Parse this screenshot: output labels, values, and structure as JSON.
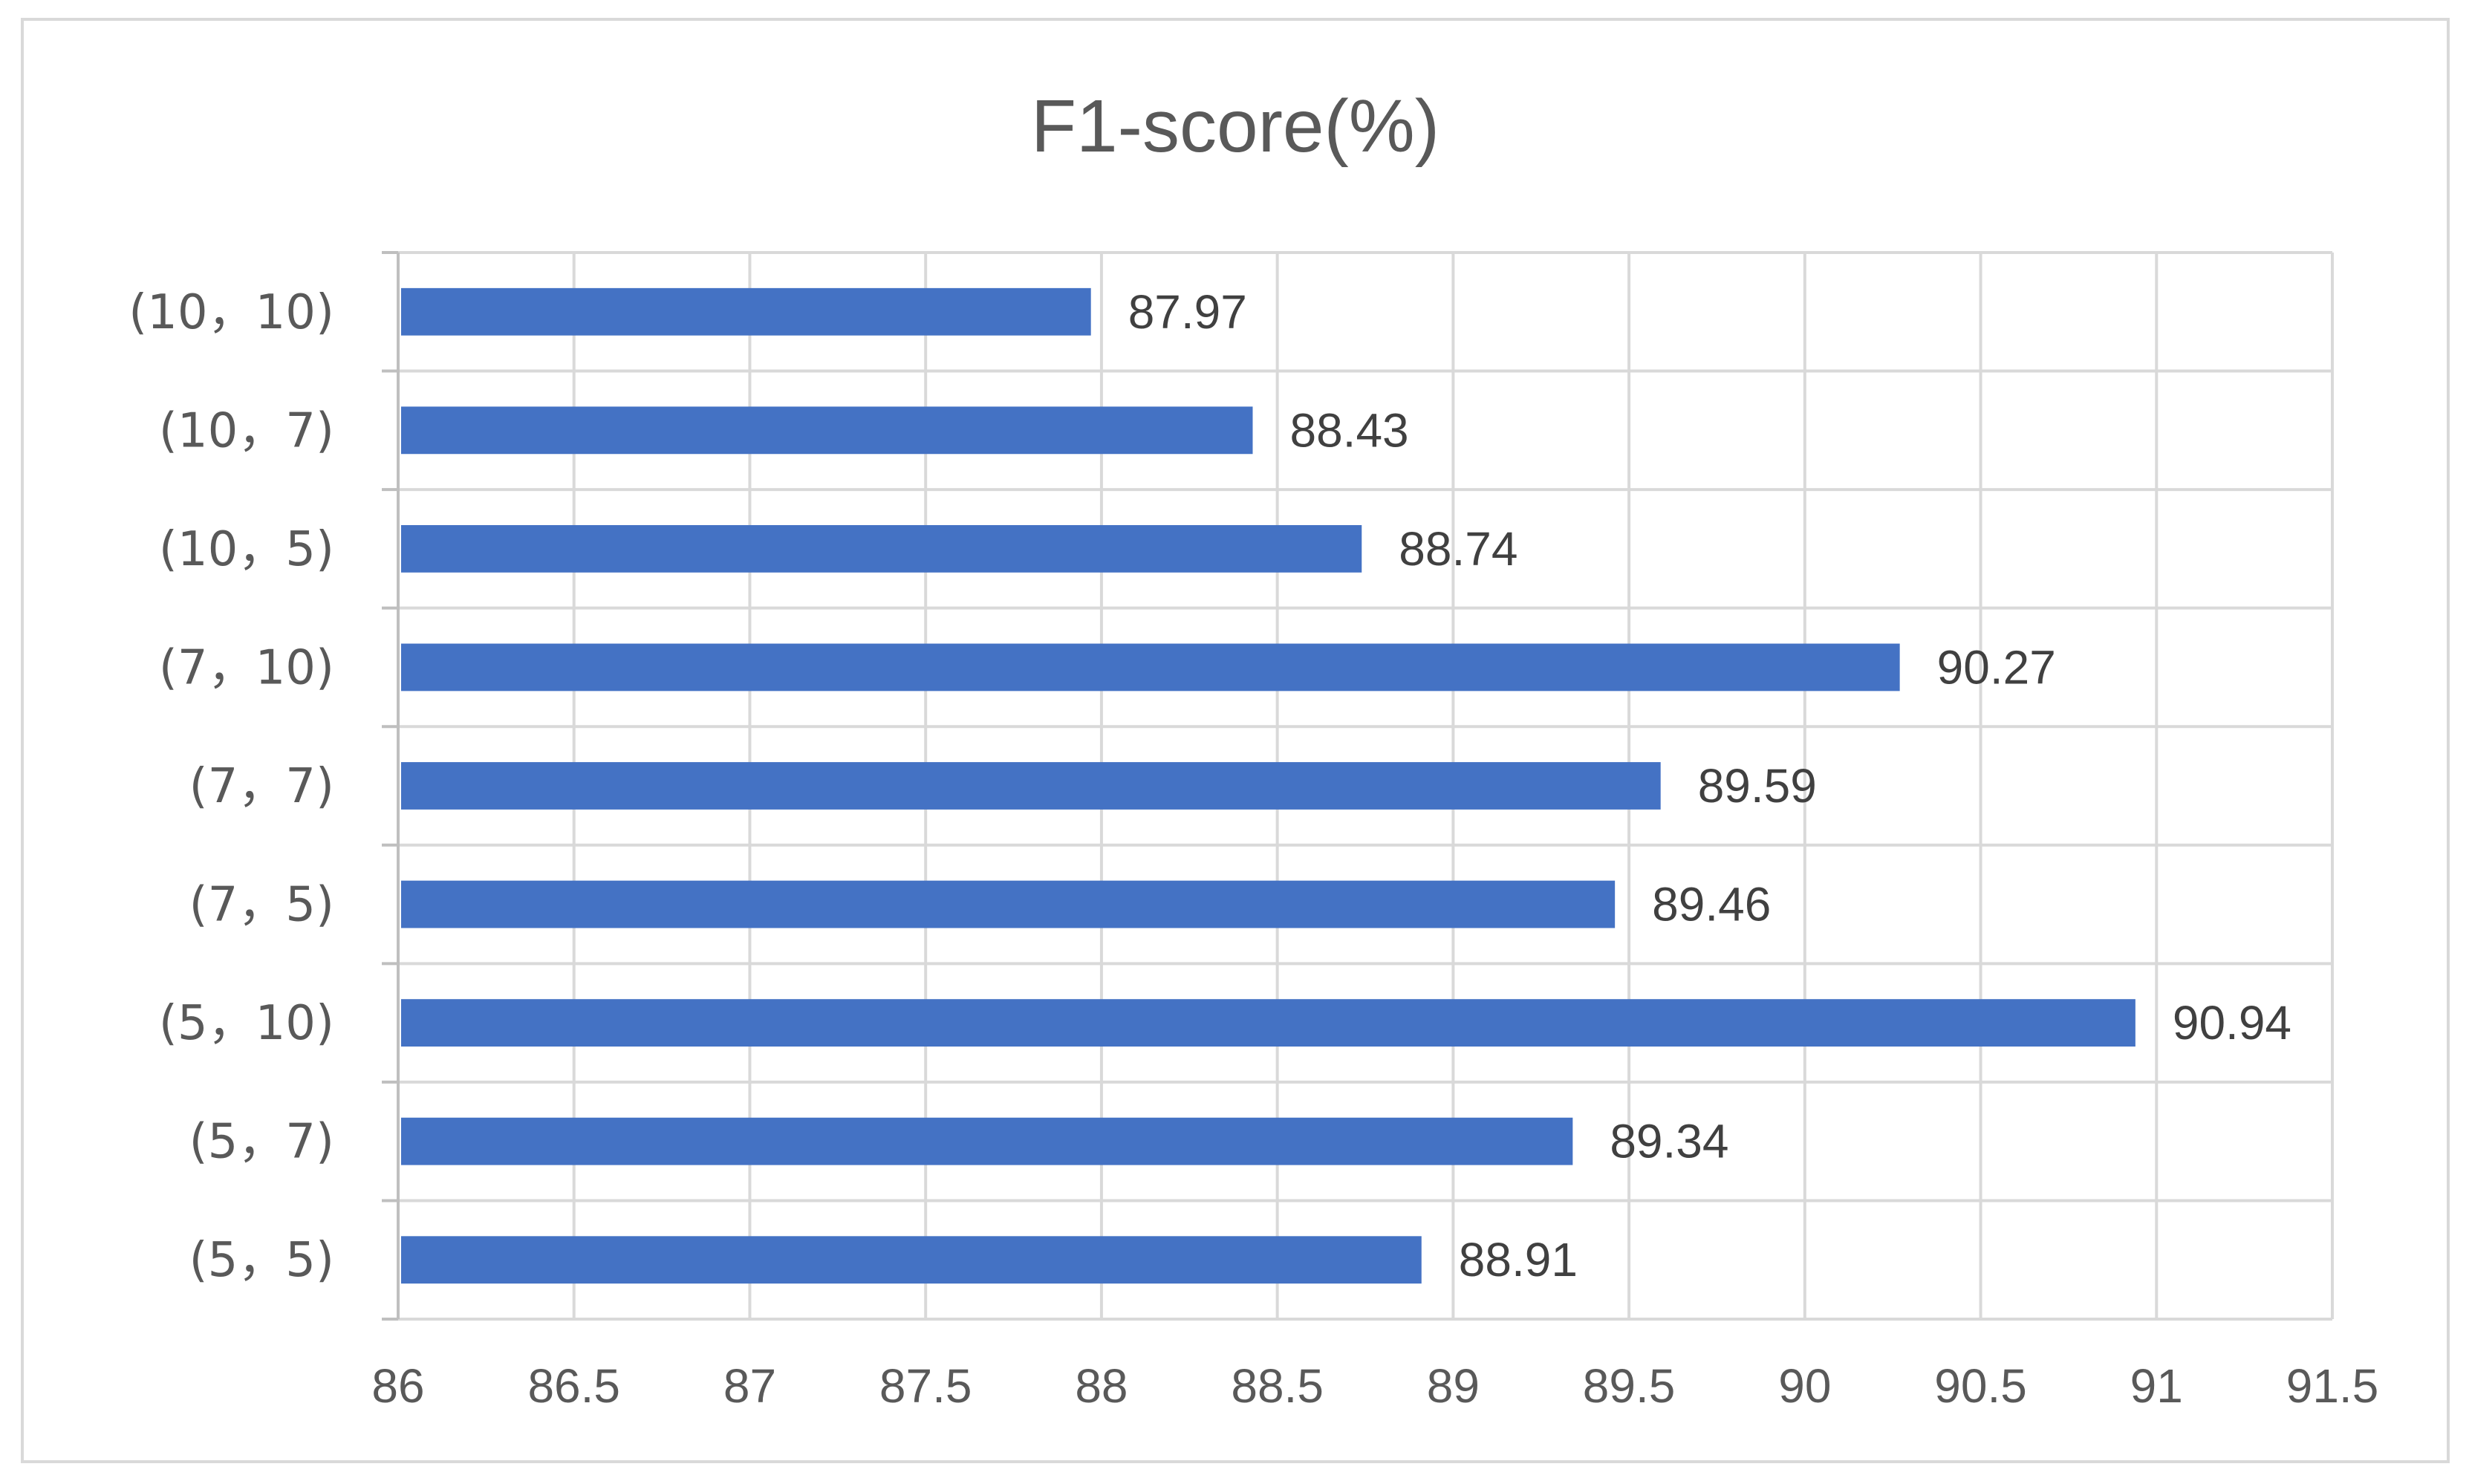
{
  "chart_data": {
    "type": "bar",
    "orientation": "horizontal",
    "title": "F1-score(%)",
    "xlabel": "",
    "ylabel": "",
    "categories": [
      "(10, 10)",
      "(10, 7)",
      "(10, 5)",
      "(7, 10)",
      "(7, 7)",
      "(7, 5)",
      "(5, 10)",
      "(5, 7)",
      "(5, 5)"
    ],
    "category_labels": [
      "(10，10)",
      "(10，7)",
      "(10，5)",
      "(7，10)",
      "(7，7)",
      "(7，5)",
      "(5，10)",
      "(5，7)",
      "(5，5)"
    ],
    "values": [
      87.97,
      88.43,
      88.74,
      90.27,
      89.59,
      89.46,
      90.94,
      89.34,
      88.91
    ],
    "value_labels": [
      "87.97",
      "88.43",
      "88.74",
      "90.27",
      "89.59",
      "89.46",
      "90.94",
      "89.34",
      "88.91"
    ],
    "xlim": [
      86,
      91.5
    ],
    "xticks": [
      86,
      86.5,
      87,
      87.5,
      88,
      88.5,
      89,
      89.5,
      90,
      90.5,
      91,
      91.5
    ],
    "xtick_labels": [
      "86",
      "86.5",
      "87",
      "87.5",
      "88",
      "88.5",
      "89",
      "89.5",
      "90",
      "90.5",
      "91",
      "91.5"
    ],
    "grid": true,
    "legend": "none",
    "colors": {
      "bar": "#4472c4",
      "grid": "#d9d9d9",
      "axis": "#bfbfbf",
      "text": "#595959",
      "label": "#404040"
    }
  }
}
